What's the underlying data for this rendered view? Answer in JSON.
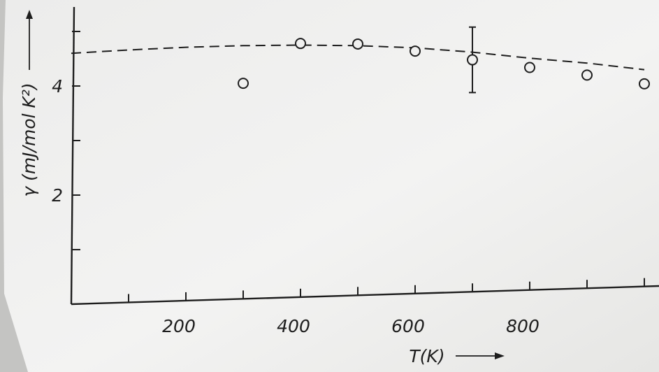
{
  "chart_data": {
    "type": "scatter",
    "xlabel": "T(K)",
    "ylabel": "γ (mJ/mol K²)",
    "xlim": [
      0,
      1000
    ],
    "ylim": [
      0,
      6
    ],
    "x_ticks": [
      100,
      200,
      300,
      400,
      500,
      600,
      700,
      800,
      900,
      1000
    ],
    "x_tick_labels": [
      {
        "value": 200,
        "label": "200"
      },
      {
        "value": 400,
        "label": "400"
      },
      {
        "value": 600,
        "label": "600"
      },
      {
        "value": 800,
        "label": "800"
      }
    ],
    "y_ticks": [
      1,
      2,
      3,
      4,
      5
    ],
    "y_tick_labels": [
      {
        "value": 2,
        "label": "2"
      },
      {
        "value": 4,
        "label": "4"
      }
    ],
    "series": [
      {
        "style": "open-circle",
        "points": [
          {
            "x": 300,
            "y": 4.05
          },
          {
            "x": 400,
            "y": 4.78
          },
          {
            "x": 500,
            "y": 4.77
          },
          {
            "x": 600,
            "y": 4.64
          },
          {
            "x": 700,
            "y": 4.48,
            "err": 0.6
          },
          {
            "x": 800,
            "y": 4.34
          },
          {
            "x": 900,
            "y": 4.2
          },
          {
            "x": 1000,
            "y": 4.04
          }
        ]
      },
      {
        "style": "dashed-line",
        "points": [
          {
            "x": 0,
            "y": 4.6
          },
          {
            "x": 100,
            "y": 4.66
          },
          {
            "x": 200,
            "y": 4.71
          },
          {
            "x": 300,
            "y": 4.74
          },
          {
            "x": 400,
            "y": 4.75
          },
          {
            "x": 500,
            "y": 4.74
          },
          {
            "x": 600,
            "y": 4.7
          },
          {
            "x": 700,
            "y": 4.62
          },
          {
            "x": 800,
            "y": 4.51
          },
          {
            "x": 900,
            "y": 4.42
          },
          {
            "x": 1000,
            "y": 4.3
          }
        ]
      }
    ],
    "grid": false,
    "colors": {
      "ink": "#1d1d1d",
      "paper": "#f0f0ef"
    }
  }
}
